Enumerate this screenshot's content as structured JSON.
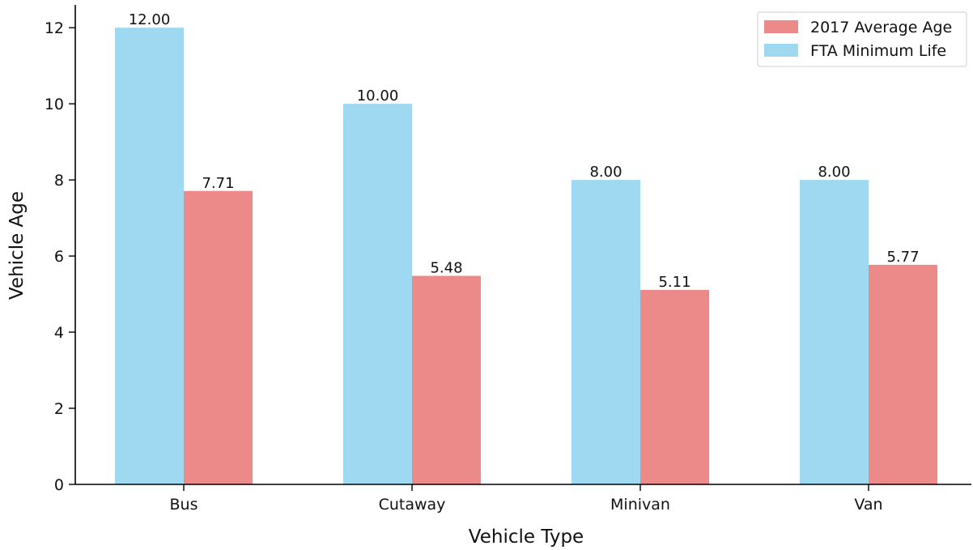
{
  "chart_data": {
    "type": "bar",
    "categories": [
      "Bus",
      "Cutaway",
      "Minivan",
      "Van"
    ],
    "series": [
      {
        "name": "FTA Minimum Life",
        "values": [
          12.0,
          10.0,
          8.0,
          8.0
        ],
        "color": "#9fd8f1"
      },
      {
        "name": "2017 Average Age",
        "values": [
          7.71,
          5.48,
          5.11,
          5.77
        ],
        "color": "#ec8a8a"
      }
    ],
    "legend_order": [
      "2017 Average Age",
      "FTA Minimum Life"
    ],
    "xlabel": "Vehicle Type",
    "ylabel": "Vehicle Age",
    "ylim": [
      0,
      12.6
    ],
    "yticks": [
      0,
      2,
      4,
      6,
      8,
      10,
      12
    ],
    "value_label_format": "2 decimals",
    "grid": false,
    "legend_position": "top-right"
  }
}
